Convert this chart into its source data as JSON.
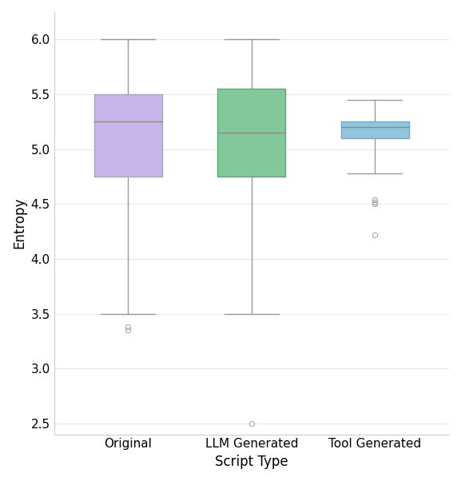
{
  "categories": [
    "Original",
    "LLM Generated",
    "Tool Generated"
  ],
  "xlabel": "Script Type",
  "ylabel": "Entropy",
  "ylim": [
    2.4,
    6.25
  ],
  "yticks": [
    2.5,
    3.0,
    3.5,
    4.0,
    4.5,
    5.0,
    5.5,
    6.0
  ],
  "box_data": {
    "Original": {
      "q1": 4.75,
      "median": 5.25,
      "q3": 5.5,
      "whisker_low": 3.5,
      "whisker_high": 6.0,
      "outliers": [
        3.35,
        3.38
      ],
      "facecolor": "#c5b8e8",
      "edgecolor": "#aaa0cc"
    },
    "LLM Generated": {
      "q1": 4.75,
      "median": 5.15,
      "q3": 5.55,
      "whisker_low": 3.5,
      "whisker_high": 6.0,
      "outliers": [
        2.5
      ],
      "facecolor": "#82c99a",
      "edgecolor": "#5aaa72"
    },
    "Tool Generated": {
      "q1": 5.1,
      "median": 5.2,
      "q3": 5.25,
      "whisker_low": 4.78,
      "whisker_high": 5.45,
      "outliers": [
        4.22,
        4.5,
        4.52,
        4.54
      ],
      "facecolor": "#92c4e0",
      "edgecolor": "#70a8c8"
    }
  },
  "box_width": 0.55,
  "whisker_color": "#999999",
  "outlier_color": "#aaaaaa",
  "median_color": "#888888",
  "background_color": "#ffffff",
  "tick_label_fontsize": 11,
  "axis_label_fontsize": 12,
  "figsize": [
    5.77,
    6.02
  ],
  "dpi": 100
}
